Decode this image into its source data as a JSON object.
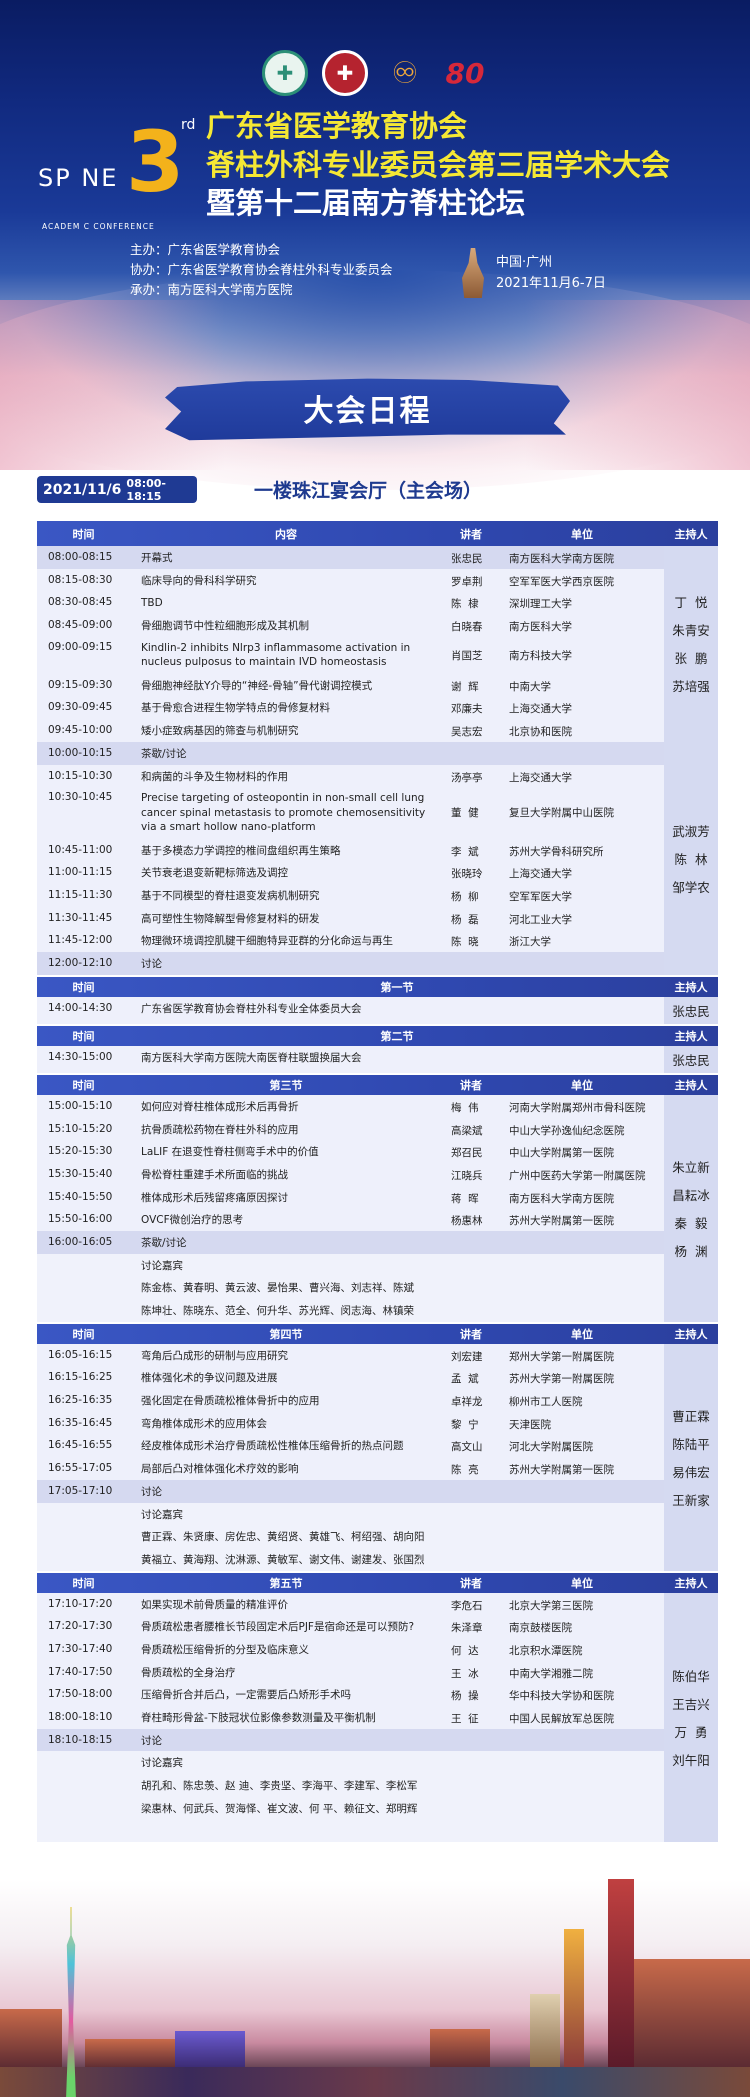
{
  "header": {
    "logos": [
      "广东省医学教育协会",
      "南方医院",
      "南方医科大学",
      "80周年"
    ],
    "spine_logo": {
      "ordinal": "3",
      "suffix": "rd",
      "word": "SP NE",
      "subtitle": "ACADEM C CONFERENCE"
    },
    "title_lines": [
      "广东省医学教育协会",
      "脊柱外科专业委员会第三届学术大会",
      "暨第十二届南方脊柱论坛"
    ],
    "organizers": [
      "主办：广东省医学教育协会",
      "协办：广东省医学教育协会脊柱外科专业委员会",
      "承办：南方医科大学南方医院"
    ],
    "location": "中国·广州",
    "dates": "2021年11月6-7日",
    "colors": {
      "navy": "#0a1c62",
      "title_yellow": "#f5e834",
      "accent_orange": "#f3b21b"
    }
  },
  "banner": "大会日程",
  "day": {
    "date": "2021/11/6",
    "time": "08:00-18:15",
    "venue": "一楼珠江宴会厅（主会场）"
  },
  "colors": {
    "header_blue": "#3a57c4",
    "row": "#eef0fb",
    "row_highlight": "#d5d9f0",
    "host_col": "#d5daf1"
  },
  "sections": [
    {
      "header": {
        "time": "时间",
        "content": "内容",
        "speaker": "讲者",
        "unit": "单位",
        "host": "主持人"
      },
      "blocks": [
        {
          "hosts": [
            "丁  悦",
            "朱青安",
            "张  鹏",
            "苏培强"
          ],
          "rows": [
            {
              "time": "08:00-08:15",
              "content": "开幕式",
              "speaker": "张忠民",
              "unit": "南方医科大学南方医院",
              "hl": true
            },
            {
              "time": "08:15-08:30",
              "content": "临床导向的骨科科学研究",
              "speaker": "罗卓荆",
              "unit": "空军军医大学西京医院"
            },
            {
              "time": "08:30-08:45",
              "content": "TBD",
              "speaker": "陈  棣",
              "unit": "深圳理工大学"
            },
            {
              "time": "08:45-09:00",
              "content": "骨细胞调节中性粒细胞形成及其机制",
              "speaker": "白晓春",
              "unit": "南方医科大学"
            },
            {
              "time": "09:00-09:15",
              "content": "Kindlin-2 inhibits Nlrp3 inflammasome activation in nucleus pulposus to maintain IVD homeostasis",
              "speaker": "肖国芝",
              "unit": "南方科技大学"
            },
            {
              "time": "09:15-09:30",
              "content": "骨细胞神经肽Y介导的“神经-骨轴”骨代谢调控模式",
              "speaker": "谢  辉",
              "unit": "中南大学"
            },
            {
              "time": "09:30-09:45",
              "content": "基于骨愈合进程生物学特点的骨修复材料",
              "speaker": "邓廉夫",
              "unit": "上海交通大学"
            },
            {
              "time": "09:45-10:00",
              "content": "矮小症致病基因的筛查与机制研究",
              "speaker": "吴志宏",
              "unit": "北京协和医院"
            }
          ]
        },
        {
          "hosts": [
            "武淑芳",
            "陈  林",
            "邹学农"
          ],
          "rows": [
            {
              "time": "10:00-10:15",
              "content": "茶歇/讨论",
              "hl": true
            },
            {
              "time": "10:15-10:30",
              "content": "和病菌的斗争及生物材料的作用",
              "speaker": "汤亭亭",
              "unit": "上海交通大学"
            },
            {
              "time": "10:30-10:45",
              "content": "Precise targeting of osteopontin in non-small cell lung cancer spinal metastasis to promote chemosensitivity via a smart hollow nano-platform",
              "speaker": "董  健",
              "unit": "复旦大学附属中山医院"
            },
            {
              "time": "10:45-11:00",
              "content": "基于多模态力学调控的椎间盘组织再生策略",
              "speaker": "李  斌",
              "unit": "苏州大学骨科研究所"
            },
            {
              "time": "11:00-11:15",
              "content": "关节衰老退变新靶标筛选及调控",
              "speaker": "张晓玲",
              "unit": "上海交通大学"
            },
            {
              "time": "11:15-11:30",
              "content": "基于不同模型的脊柱退变发病机制研究",
              "speaker": "杨  柳",
              "unit": "空军军医大学"
            },
            {
              "time": "11:30-11:45",
              "content": "高可塑性生物降解型骨修复材料的研发",
              "speaker": "杨  磊",
              "unit": "河北工业大学"
            },
            {
              "time": "11:45-12:00",
              "content": "物理微环境调控肌腱干细胞特异亚群的分化命运与再生",
              "speaker": "陈  晓",
              "unit": "浙江大学"
            },
            {
              "time": "12:00-12:10",
              "content": "讨论",
              "hl": true
            }
          ]
        }
      ]
    },
    {
      "header": {
        "time": "时间",
        "content": "第一节",
        "host": "主持人"
      },
      "blocks": [
        {
          "hosts": [
            "张忠民"
          ],
          "rows": [
            {
              "time": "14:00-14:30",
              "content": "广东省医学教育协会脊柱外科专业全体委员大会",
              "wide": true
            }
          ]
        }
      ]
    },
    {
      "header": {
        "time": "时间",
        "content": "第二节",
        "host": "主持人"
      },
      "blocks": [
        {
          "hosts": [
            "张忠民"
          ],
          "rows": [
            {
              "time": "14:30-15:00",
              "content": "南方医科大学南方医院大南医脊柱联盟换届大会",
              "wide": true
            }
          ]
        }
      ]
    },
    {
      "header": {
        "time": "时间",
        "content": "第三节",
        "speaker": "讲者",
        "unit": "单位",
        "host": "主持人"
      },
      "blocks": [
        {
          "hosts": [
            "朱立新",
            "昌耘冰",
            "秦  毅",
            "杨  渊"
          ],
          "rows": [
            {
              "time": "15:00-15:10",
              "content": "如何应对脊柱椎体成形术后再骨折",
              "speaker": "梅  伟",
              "unit": "河南大学附属郑州市骨科医院"
            },
            {
              "time": "15:10-15:20",
              "content": "抗骨质疏松药物在脊柱外科的应用",
              "speaker": "高梁斌",
              "unit": "中山大学孙逸仙纪念医院"
            },
            {
              "time": "15:20-15:30",
              "content": "LaLIF 在退变性脊柱侧弯手术中的价值",
              "speaker": "郑召民",
              "unit": "中山大学附属第一医院"
            },
            {
              "time": "15:30-15:40",
              "content": "骨松脊柱重建手术所面临的挑战",
              "speaker": "江晓兵",
              "unit": "广州中医药大学第一附属医院"
            },
            {
              "time": "15:40-15:50",
              "content": "椎体成形术后残留疼痛原因探讨",
              "speaker": "蒋  晖",
              "unit": "南方医科大学南方医院"
            },
            {
              "time": "15:50-16:00",
              "content": "OVCF微创治疗的思考",
              "speaker": "杨惠林",
              "unit": "苏州大学附属第一医院"
            },
            {
              "time": "16:00-16:05",
              "content": "茶歇/讨论",
              "hl": true
            },
            {
              "time": "",
              "content": "讨论嘉宾",
              "guest": true
            },
            {
              "time": "",
              "content": "陈金栋、黄春明、黄云波、晏怡果、曹兴海、刘志祥、陈斌",
              "guest": true
            },
            {
              "time": "",
              "content": "陈坤壮、陈晓东、范全、何升华、苏光辉、闵志海、林镇荣",
              "guest": true
            }
          ]
        }
      ]
    },
    {
      "header": {
        "time": "时间",
        "content": "第四节",
        "speaker": "讲者",
        "unit": "单位",
        "host": "主持人"
      },
      "blocks": [
        {
          "hosts": [
            "曹正霖",
            "陈陆平",
            "易伟宏",
            "王新家"
          ],
          "rows": [
            {
              "time": "16:05-16:15",
              "content": "弯角后凸成形的研制与应用研究",
              "speaker": "刘宏建",
              "unit": "郑州大学第一附属医院"
            },
            {
              "time": "16:15-16:25",
              "content": "椎体强化术的争议问题及进展",
              "speaker": "孟  斌",
              "unit": "苏州大学第一附属医院"
            },
            {
              "time": "16:25-16:35",
              "content": "强化固定在骨质疏松椎体骨折中的应用",
              "speaker": "卓祥龙",
              "unit": "柳州市工人医院"
            },
            {
              "time": "16:35-16:45",
              "content": "弯角椎体成形术的应用体会",
              "speaker": "黎  宁",
              "unit": "天津医院"
            },
            {
              "time": "16:45-16:55",
              "content": "经皮椎体成形术治疗骨质疏松性椎体压缩骨折的热点问题",
              "speaker": "高文山",
              "unit": "河北大学附属医院"
            },
            {
              "time": "16:55-17:05",
              "content": "局部后凸对椎体强化术疗效的影响",
              "speaker": "陈  亮",
              "unit": "苏州大学附属第一医院"
            },
            {
              "time": "17:05-17:10",
              "content": "讨论",
              "hl": true
            },
            {
              "time": "",
              "content": "讨论嘉宾",
              "guest": true
            },
            {
              "time": "",
              "content": "曹正霖、朱贤康、房佐忠、黄绍贤、黄雄飞、柯绍强、胡向阳",
              "guest": true
            },
            {
              "time": "",
              "content": "黄福立、黄海翔、沈淋源、黄敏军、谢文伟、谢建发、张国烈",
              "guest": true
            }
          ]
        }
      ]
    },
    {
      "header": {
        "time": "时间",
        "content": "第五节",
        "speaker": "讲者",
        "unit": "单位",
        "host": "主持人"
      },
      "blocks": [
        {
          "hosts": [
            "陈伯华",
            "王吉兴",
            "万  勇",
            "刘午阳"
          ],
          "rows": [
            {
              "time": "17:10-17:20",
              "content": "如果实现术前骨质量的精准评价",
              "speaker": "李危石",
              "unit": "北京大学第三医院"
            },
            {
              "time": "17:20-17:30",
              "content": "骨质疏松患者腰椎长节段固定术后PJF是宿命还是可以预防?",
              "speaker": "朱泽章",
              "unit": "南京鼓楼医院"
            },
            {
              "time": "17:30-17:40",
              "content": "骨质疏松压缩骨折的分型及临床意义",
              "speaker": "何  达",
              "unit": "北京积水潭医院"
            },
            {
              "time": "17:40-17:50",
              "content": "骨质疏松的全身治疗",
              "speaker": "王  冰",
              "unit": "中南大学湘雅二院"
            },
            {
              "time": "17:50-18:00",
              "content": "压缩骨折合并后凸，一定需要后凸矫形手术吗",
              "speaker": "杨  操",
              "unit": "华中科技大学协和医院"
            },
            {
              "time": "18:00-18:10",
              "content": "脊柱畸形骨盆-下肢冠状位影像参数测量及平衡机制",
              "speaker": "王  征",
              "unit": "中国人民解放军总医院"
            },
            {
              "time": "18:10-18:15",
              "content": "讨论",
              "hl": true
            },
            {
              "time": "",
              "content": "讨论嘉宾",
              "guest": true
            },
            {
              "time": "",
              "content": "胡孔和、陈忠羡、赵 迪、李贵坚、李海平、李建军、李松军",
              "guest": true
            },
            {
              "time": "",
              "content": "梁惠林、何武兵、贺海怿、崔文波、何 平、赖征文、郑明辉",
              "guest": true
            },
            {
              "time": "",
              "content": "",
              "guest": true
            }
          ]
        }
      ]
    }
  ]
}
